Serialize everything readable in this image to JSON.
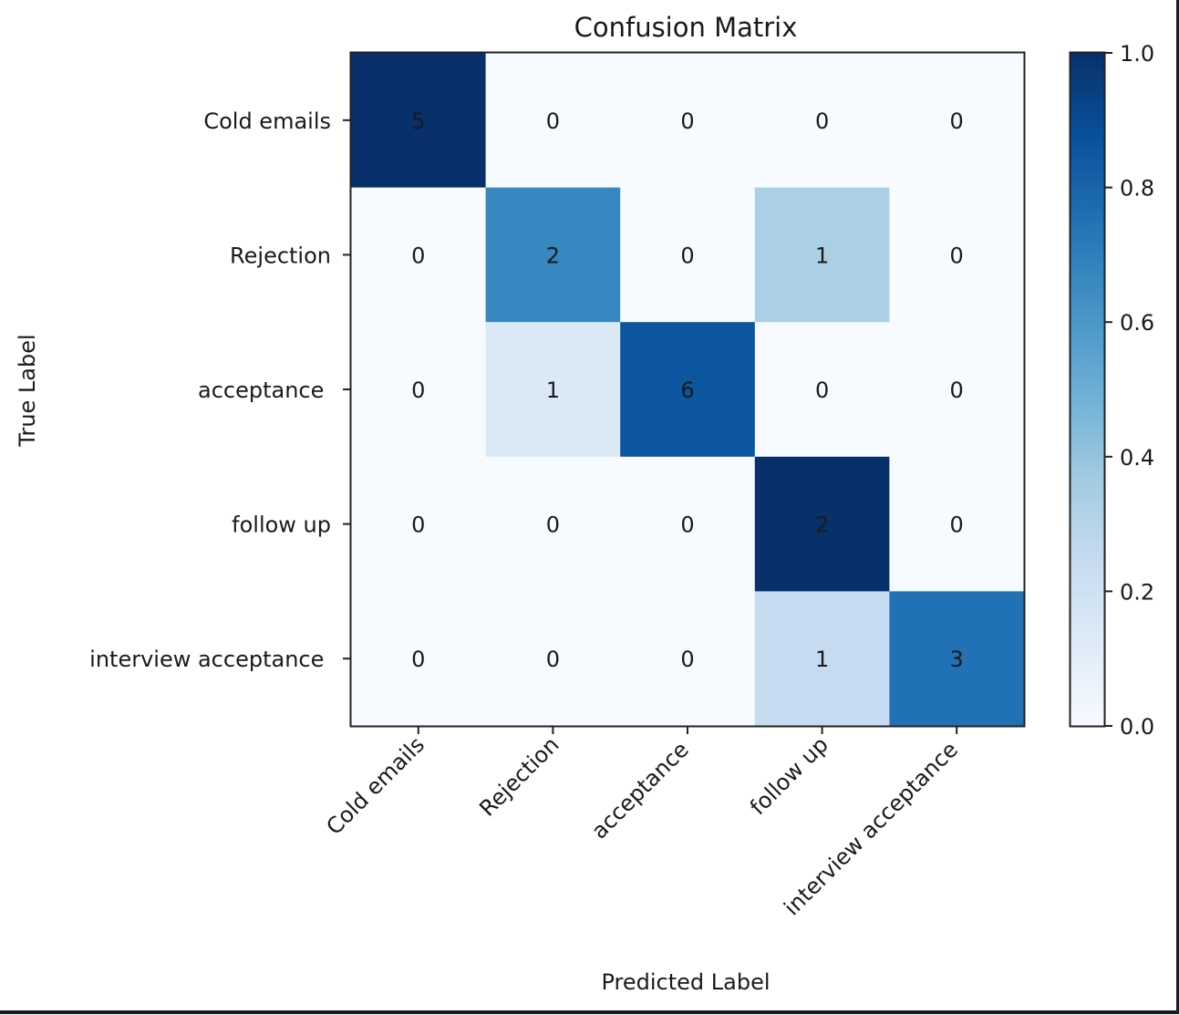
{
  "chart_data": {
    "type": "heatmap",
    "title": "Confusion Matrix",
    "xlabel": "Predicted Label",
    "ylabel": "True Label",
    "x_categories": [
      "Cold emails",
      "Rejection",
      "acceptance ",
      "follow up",
      "interview acceptance "
    ],
    "y_categories": [
      "Cold emails",
      "Rejection",
      "acceptance ",
      "follow up",
      "interview acceptance "
    ],
    "counts": [
      [
        5,
        0,
        0,
        0,
        0
      ],
      [
        0,
        2,
        0,
        1,
        0
      ],
      [
        0,
        1,
        6,
        0,
        0
      ],
      [
        0,
        0,
        0,
        2,
        0
      ],
      [
        0,
        0,
        0,
        1,
        3
      ]
    ],
    "normalized_values": [
      [
        1.0,
        0.0,
        0.0,
        0.0,
        0.0
      ],
      [
        0.0,
        0.667,
        0.0,
        0.333,
        0.0
      ],
      [
        0.0,
        0.143,
        0.857,
        0.0,
        0.0
      ],
      [
        0.0,
        0.0,
        0.0,
        1.0,
        0.0
      ],
      [
        0.0,
        0.0,
        0.0,
        0.25,
        0.75
      ]
    ],
    "colormap": "Blues",
    "colorbar": {
      "range": [
        0.0,
        1.0
      ],
      "ticks": [
        0.0,
        0.2,
        0.4,
        0.6,
        0.8,
        1.0
      ],
      "tick_labels": [
        "0.0",
        "0.2",
        "0.4",
        "0.6",
        "0.8",
        "1.0"
      ],
      "placement": "right"
    },
    "xtick_rotation_deg": 45,
    "grid": false
  }
}
